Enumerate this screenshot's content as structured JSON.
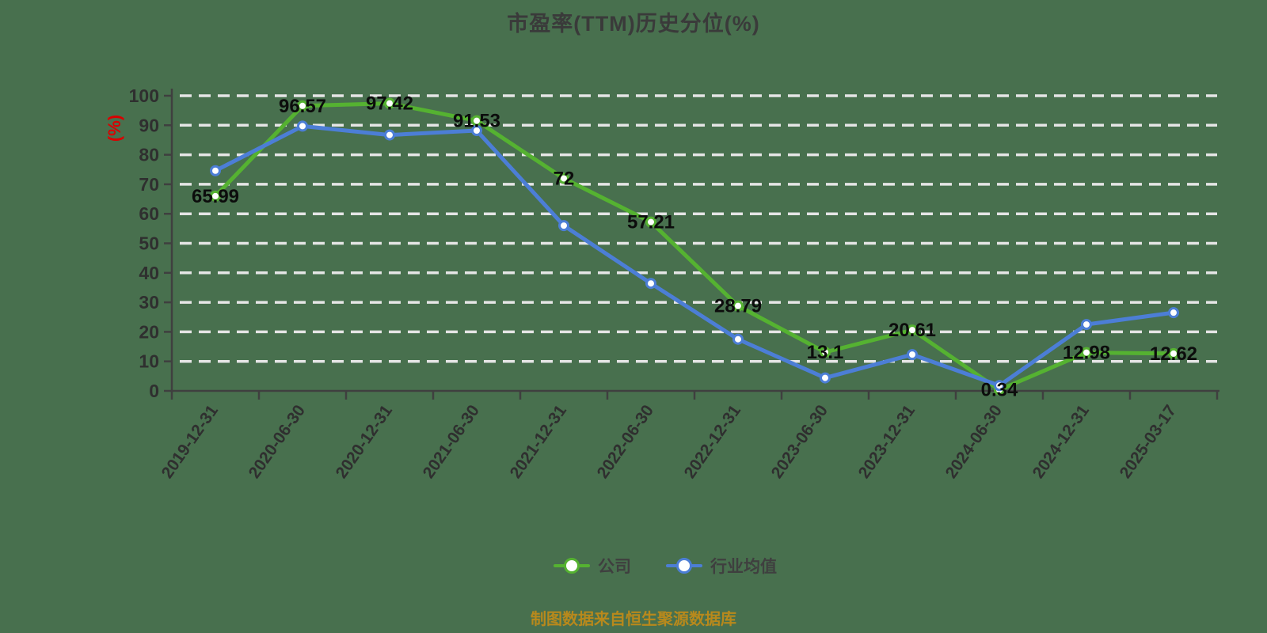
{
  "title": "市盈率(TTM)历史分位(%)",
  "y_axis_name": "(%)",
  "caption": "制图数据来自恒生聚源数据库",
  "legend": {
    "items": [
      {
        "label": "公司",
        "color": "#55b231"
      },
      {
        "label": "行业均值",
        "color": "#4c7ed6"
      }
    ]
  },
  "chart_data": {
    "type": "line",
    "title": "市盈率(TTM)历史分位(%)",
    "ylabel": "(%)",
    "categories": [
      "2019-12-31",
      "2020-06-30",
      "2020-12-31",
      "2021-06-30",
      "2021-12-31",
      "2022-06-30",
      "2022-12-31",
      "2023-06-30",
      "2023-12-31",
      "2024-06-30",
      "2024-12-31",
      "2025-03-17"
    ],
    "series": [
      {
        "name": "公司",
        "color": "#55b231",
        "values": [
          65.99,
          96.57,
          97.42,
          91.53,
          72,
          57.21,
          28.79,
          13.1,
          20.61,
          0.34,
          12.98,
          12.62
        ],
        "point_labels": [
          "65.99",
          "96.57",
          "97.42",
          "91.53",
          "72",
          "57.21",
          "28.79",
          "13.1",
          "20.61",
          "0.34",
          "12.98",
          "12.62"
        ],
        "labels_visible": true
      },
      {
        "name": "行业均值",
        "color": "#4c7ed6",
        "values": [
          74.6,
          89.7,
          86.7,
          88.2,
          56.0,
          36.4,
          17.5,
          4.4,
          12.3,
          1.8,
          22.5,
          26.5
        ],
        "point_labels": [],
        "labels_visible": false
      }
    ],
    "ylim": [
      0,
      100
    ],
    "y_tick_step": 10,
    "grid": "horizontal-dashed-white",
    "legend_position": "bottom",
    "x_label_rotation_deg": -55
  },
  "colors": {
    "background": "#48704e",
    "axis": "#3f3f3f",
    "tick_text": "#2f2f2f",
    "gridline": "#e5e5e5",
    "data_label": "#0c0c0c",
    "y_axis_name": "#d90000",
    "title": "#3a3a3a",
    "caption": "#b8891c",
    "legend_text": "#3f3f3f"
  }
}
